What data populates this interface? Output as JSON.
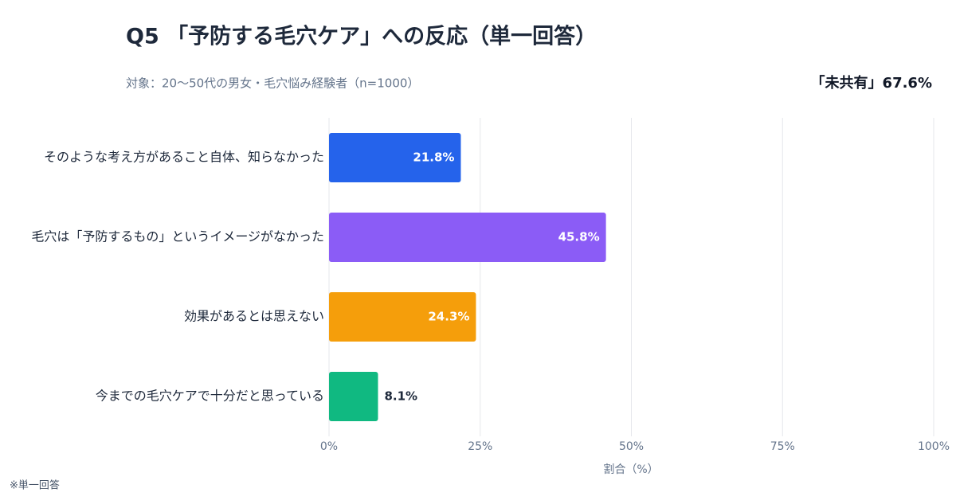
{
  "chart_data": {
    "type": "hbar",
    "title": "Q5 「予防する毛穴ケア」への反応（単一回答）",
    "subtitle": "対象：20〜50代の男女・毛穴悩み経験者（n=1000）",
    "annotation": "「未共有」67.6%",
    "categories": [
      "そのような考え方があること自体、知らなかった",
      "毛穴は「予防するもの」というイメージがなかった",
      "効果があるとは思えない",
      "今までの毛穴ケアで十分だと思っている"
    ],
    "values": [
      21.8,
      45.8,
      24.3,
      8.1
    ],
    "value_labels": [
      "21.8%",
      "45.8%",
      "24.3%",
      "8.1%"
    ],
    "colors": [
      "#2563eb",
      "#8b5cf6",
      "#f59e0b",
      "#10b981"
    ],
    "xlim": [
      0,
      100
    ],
    "xticks": [
      {
        "value": 0,
        "label": "0%"
      },
      {
        "value": 25,
        "label": "25%"
      },
      {
        "value": 50,
        "label": "50%"
      },
      {
        "value": 75,
        "label": "75%"
      },
      {
        "value": 100,
        "label": "100%"
      }
    ],
    "xlabel": "割合（%）",
    "grid": true,
    "note": "※単一回答"
  }
}
